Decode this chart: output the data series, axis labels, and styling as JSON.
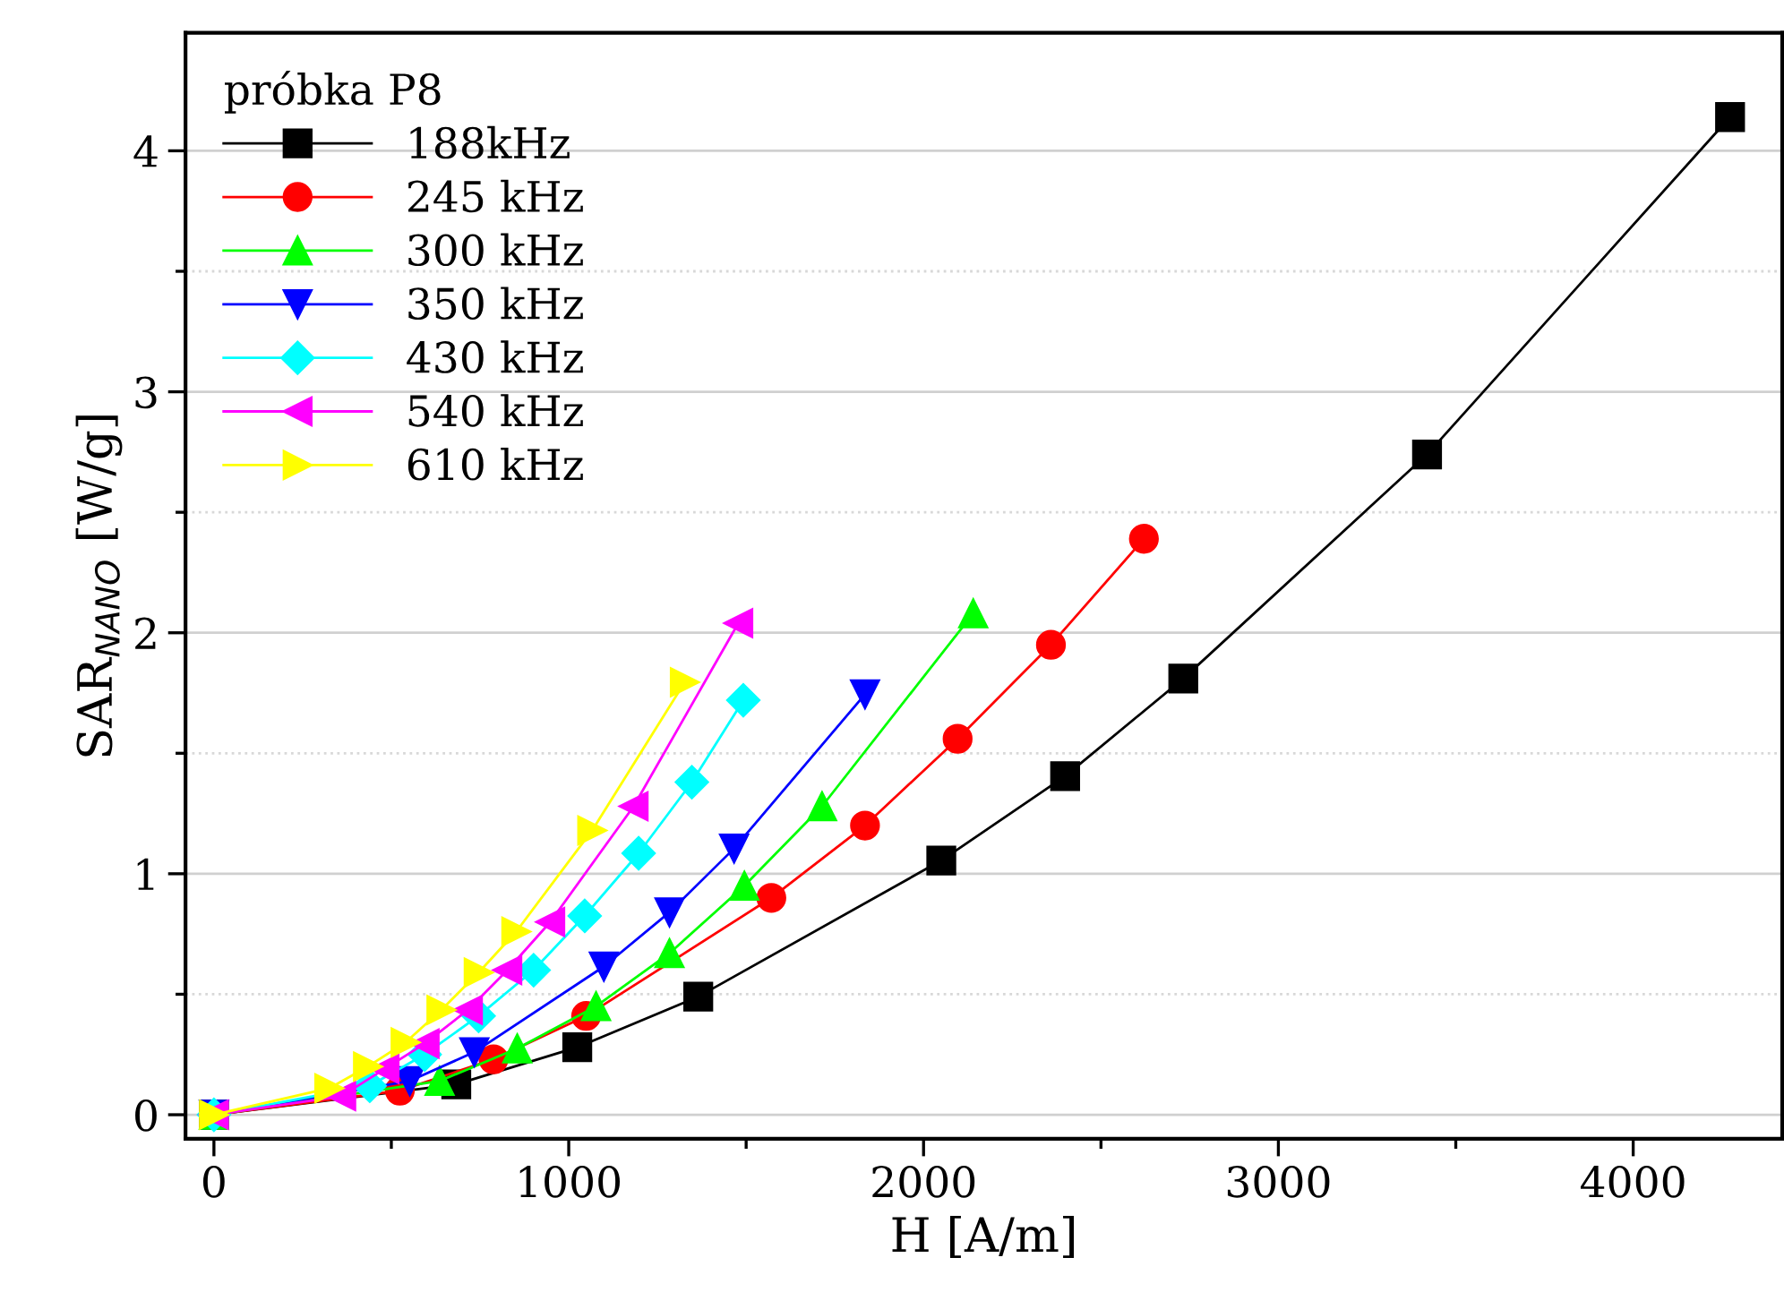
{
  "chart_data": {
    "type": "line",
    "xlabel": "H [A/m]",
    "ylabel": "SAR$_{NANO}$ [W/g]",
    "legend_title": "próbka P8",
    "legend": "top left",
    "grid": "y",
    "xlim": [
      -80,
      4420
    ],
    "ylim": [
      -0.1,
      4.49
    ],
    "xticks": [
      0,
      1000,
      2000,
      3000,
      4000
    ],
    "yticks": [
      0,
      1,
      2,
      3,
      4
    ],
    "series": [
      {
        "name": "188kHz",
        "color": "#000000",
        "marker": "square",
        "x": [
          0,
          683,
          1024,
          1365,
          2050,
          2399,
          2732,
          3419,
          4273
        ],
        "values": [
          0,
          0.126,
          0.28,
          0.49,
          1.055,
          1.405,
          1.81,
          2.74,
          4.14
        ]
      },
      {
        "name": "245 kHz",
        "color": "#ff0000",
        "marker": "circle",
        "x": [
          0,
          524,
          788,
          1049,
          1571,
          1835,
          2096,
          2359,
          2621
        ],
        "values": [
          0,
          0.1,
          0.23,
          0.41,
          0.9,
          1.2,
          1.56,
          1.95,
          2.39
        ]
      },
      {
        "name": "300 kHz",
        "color": "#00ff00",
        "marker": "triangle",
        "x": [
          0,
          636,
          855,
          1077,
          1284,
          1495,
          1714,
          2140
        ],
        "values": [
          0,
          0.14,
          0.275,
          0.45,
          0.67,
          0.95,
          1.28,
          2.08
        ]
      },
      {
        "name": "350 kHz",
        "color": "#0000ff",
        "marker": "triangle-down",
        "x": [
          0,
          552,
          734,
          1099,
          1284,
          1466,
          1835
        ],
        "values": [
          0,
          0.14,
          0.26,
          0.615,
          0.84,
          1.105,
          1.745
        ]
      },
      {
        "name": "430 kHz",
        "color": "#00ffff",
        "marker": "diamond",
        "x": [
          0,
          439,
          594,
          746,
          901,
          1045,
          1197,
          1347,
          1492
        ],
        "values": [
          0,
          0.12,
          0.25,
          0.41,
          0.6,
          0.825,
          1.085,
          1.38,
          1.72
        ]
      },
      {
        "name": "540 kHz",
        "color": "#ff00ff",
        "marker": "triangle-left",
        "x": [
          0,
          359,
          481,
          594,
          716,
          827,
          948,
          1183,
          1478
        ],
        "values": [
          0,
          0.077,
          0.19,
          0.295,
          0.435,
          0.6,
          0.8,
          1.28,
          2.04
        ]
      },
      {
        "name": "610 kHz",
        "color": "#ffff00",
        "marker": "triangle-right",
        "x": [
          0,
          325,
          434,
          540,
          641,
          746,
          852,
          1066,
          1327
        ],
        "values": [
          0,
          0.11,
          0.2,
          0.3,
          0.435,
          0.59,
          0.76,
          1.18,
          1.795
        ]
      }
    ]
  }
}
